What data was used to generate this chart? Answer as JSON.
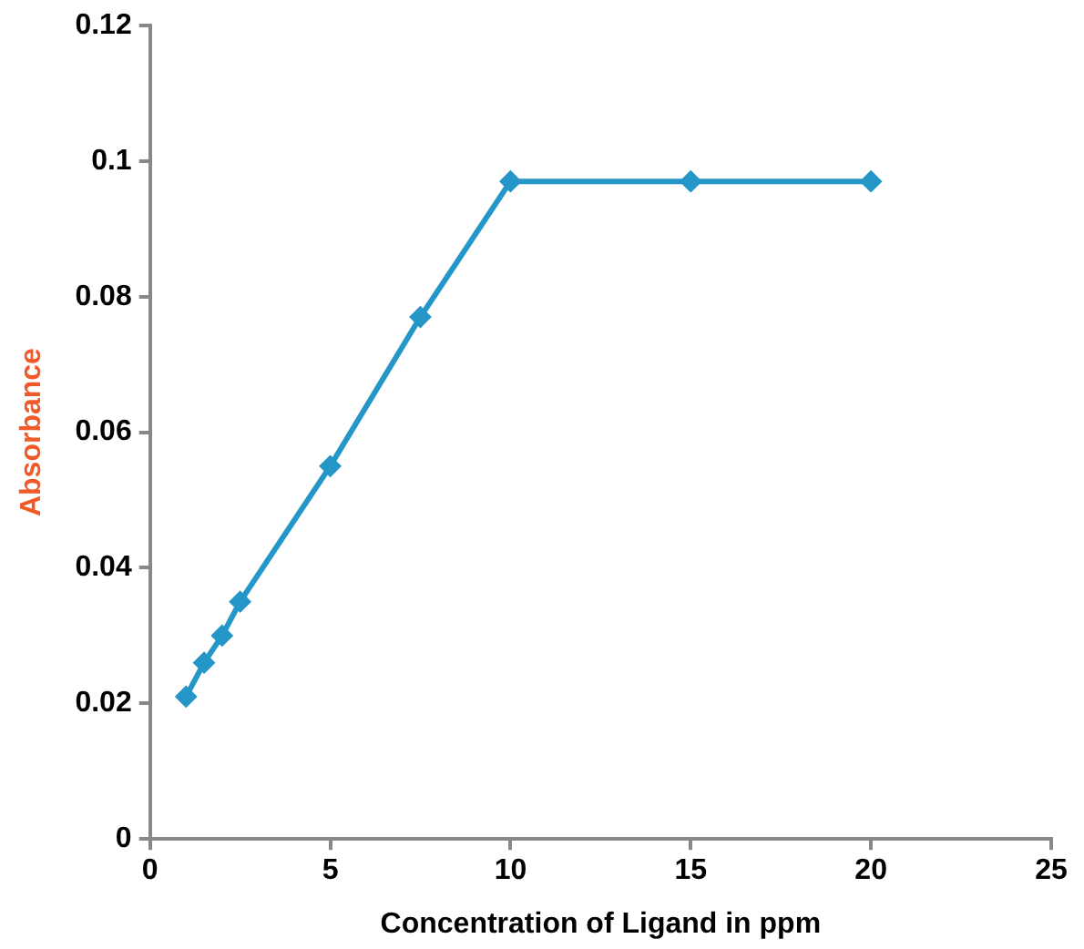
{
  "chart_data": {
    "type": "line",
    "xlabel": "Concentration of Ligand in ppm",
    "ylabel": "Absorbance",
    "x": [
      1,
      1.5,
      2,
      2.5,
      5,
      7.5,
      10,
      15,
      20
    ],
    "series": [
      {
        "color": "#2596c8",
        "values": [
          0.021,
          0.026,
          0.03,
          0.035,
          0.055,
          0.077,
          0.097,
          0.097,
          0.097
        ]
      }
    ],
    "xlim": [
      0,
      25
    ],
    "xticks": [
      0,
      5,
      10,
      15,
      20,
      25
    ],
    "ylim": [
      0,
      0.12
    ],
    "yticks": [
      0,
      0.02,
      0.04,
      0.06,
      0.08,
      0.1,
      0.12
    ],
    "grid": false,
    "legend": false,
    "marker": "diamond",
    "line_style": "solid"
  }
}
